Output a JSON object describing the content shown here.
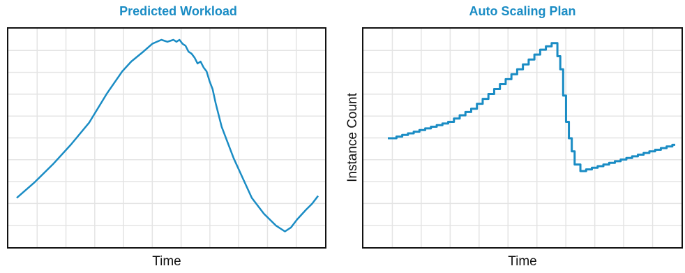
{
  "colors": {
    "line": "#1a8cc4",
    "title": "#1a8cc4",
    "grid": "#e4e4e4",
    "frame": "#111111"
  },
  "chart_data": [
    {
      "type": "line",
      "title": "Predicted Workload",
      "xlabel": "Time",
      "ylabel": "",
      "grid": true,
      "xlim": [
        0,
        100
      ],
      "ylim": [
        0,
        100
      ],
      "x": [
        0,
        6,
        12,
        18,
        24,
        30,
        35,
        38,
        42,
        45,
        48,
        50,
        52,
        53,
        54,
        55,
        56,
        57,
        58,
        59,
        60,
        61,
        62,
        63,
        64,
        65,
        66,
        67,
        68,
        70,
        72,
        75,
        78,
        82,
        86,
        89,
        91,
        93,
        96,
        98,
        100
      ],
      "series": [
        {
          "values": [
            20,
            28,
            37,
            47,
            58,
            73,
            84,
            89,
            94,
            98,
            100,
            99,
            100,
            99,
            100,
            98,
            97,
            94,
            93,
            91,
            88,
            89,
            86,
            84,
            79,
            75,
            68,
            62,
            56,
            48,
            40,
            30,
            20,
            12,
            6,
            3,
            5,
            9,
            14,
            17,
            21
          ]
        }
      ]
    },
    {
      "type": "line",
      "title": "Auto Scaling Plan",
      "xlabel": "Time",
      "ylabel": "Instance Count",
      "grid": true,
      "step": true,
      "xlim": [
        0,
        100
      ],
      "ylim": [
        0,
        100
      ],
      "x": [
        0,
        3,
        5,
        7,
        9,
        11,
        13,
        15,
        17,
        19,
        21,
        23,
        25,
        27,
        29,
        31,
        33,
        35,
        37,
        39,
        41,
        43,
        45,
        47,
        49,
        51,
        53,
        55,
        57,
        58,
        59,
        60,
        61,
        62,
        63,
        64,
        65,
        67,
        69,
        71,
        73,
        75,
        77,
        79,
        81,
        83,
        85,
        87,
        89,
        91,
        93,
        95,
        97,
        99,
        100
      ],
      "series": [
        {
          "values": [
            40,
            41,
            42,
            43,
            44,
            45,
            46,
            47,
            48,
            49,
            50,
            52,
            54,
            56,
            58,
            61,
            64,
            67,
            70,
            73,
            76,
            79,
            82,
            85,
            88,
            91,
            94,
            96,
            98,
            98,
            90,
            82,
            66,
            50,
            40,
            32,
            24,
            20,
            21,
            22,
            23,
            24,
            25,
            26,
            27,
            28,
            29,
            30,
            31,
            32,
            33,
            34,
            35,
            36,
            36
          ]
        }
      ]
    }
  ]
}
